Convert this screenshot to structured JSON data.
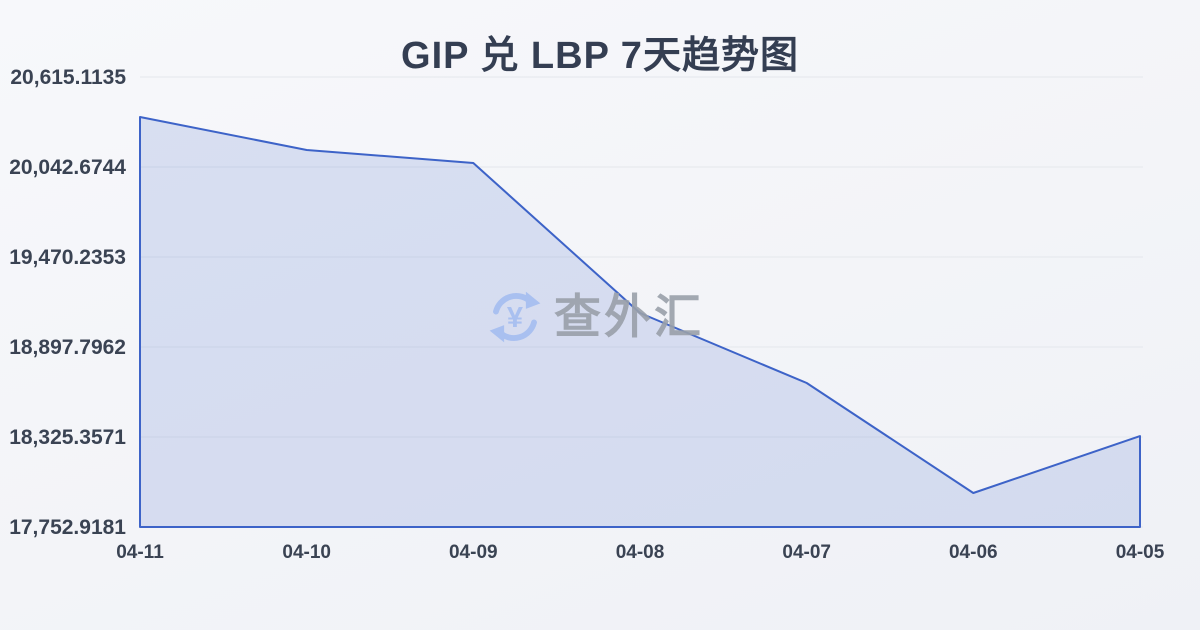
{
  "page": {
    "background": "#f3f4f8"
  },
  "watermark": {
    "text": "查外汇",
    "icon": "currency-exchange-icon",
    "icon_color": "#a5bdf0",
    "text_color": "#9aa0aa"
  },
  "chart_data": {
    "type": "area",
    "title": "GIP 兑 LBP 7天趋势图",
    "categories": [
      "04-11",
      "04-10",
      "04-09",
      "04-08",
      "04-07",
      "04-06",
      "04-05"
    ],
    "values": [
      20360.7,
      20150.8,
      20068.1,
      19114.0,
      18668.8,
      17969.2,
      18331.0
    ],
    "y_ticks": [
      {
        "label": "20,615.1135",
        "value": 20615.1135
      },
      {
        "label": "20,042.6744",
        "value": 20042.6744
      },
      {
        "label": "19,470.2353",
        "value": 19470.2353
      },
      {
        "label": "18,897.7962",
        "value": 18897.7962
      },
      {
        "label": "18,325.3571",
        "value": 18325.3571
      },
      {
        "label": "17,752.9181",
        "value": 17752.9181
      }
    ],
    "ylim": [
      17752.9181,
      20615.1135
    ],
    "xlabel": "",
    "ylabel": "",
    "grid": true,
    "legend": false,
    "colors": {
      "line": "#3d63c8",
      "fill": "rgba(61,99,200,0.16)",
      "grid": "#e4e7ec",
      "axis_text": "#3a4353",
      "title_text": "#343e52"
    }
  }
}
